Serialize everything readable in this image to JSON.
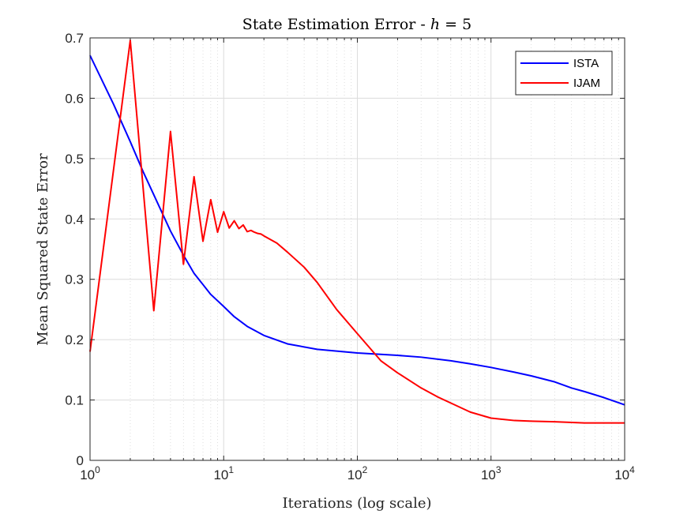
{
  "chart_data": {
    "type": "line",
    "title": "State Estimation Error - h = 5",
    "title_prefix": "State Estimation Error - ",
    "title_var": "h",
    "title_eq": " = 5",
    "xlabel": "Iterations (log scale)",
    "ylabel": "Mean Squared State Error",
    "xscale": "log",
    "xlim": [
      1,
      10000
    ],
    "ylim": [
      0,
      0.7
    ],
    "grid": true,
    "legend_position": "top-right",
    "xticks": [
      {
        "value": 1,
        "base": "10",
        "exp": "0"
      },
      {
        "value": 10,
        "base": "10",
        "exp": "1"
      },
      {
        "value": 100,
        "base": "10",
        "exp": "2"
      },
      {
        "value": 1000,
        "base": "10",
        "exp": "3"
      },
      {
        "value": 10000,
        "base": "10",
        "exp": "4"
      }
    ],
    "yticks": [
      {
        "value": 0,
        "label": "0"
      },
      {
        "value": 0.1,
        "label": "0.1"
      },
      {
        "value": 0.2,
        "label": "0.2"
      },
      {
        "value": 0.3,
        "label": "0.3"
      },
      {
        "value": 0.4,
        "label": "0.4"
      },
      {
        "value": 0.5,
        "label": "0.5"
      },
      {
        "value": 0.6,
        "label": "0.6"
      },
      {
        "value": 0.7,
        "label": "0.7"
      }
    ],
    "series": [
      {
        "name": "ISTA",
        "color": "#0000ff",
        "x": [
          1,
          1.5,
          2,
          2.5,
          3,
          4,
          5,
          6,
          8,
          10,
          12,
          15,
          20,
          30,
          50,
          70,
          100,
          200,
          300,
          500,
          700,
          1000,
          1500,
          2000,
          3000,
          4000,
          5000,
          7000,
          10000
        ],
        "y": [
          0.671,
          0.59,
          0.528,
          0.478,
          0.44,
          0.38,
          0.34,
          0.31,
          0.275,
          0.255,
          0.238,
          0.222,
          0.207,
          0.193,
          0.184,
          0.181,
          0.178,
          0.174,
          0.171,
          0.165,
          0.16,
          0.154,
          0.146,
          0.14,
          0.13,
          0.12,
          0.114,
          0.104,
          0.092
        ]
      },
      {
        "name": "IJAM",
        "color": "#ff0000",
        "x": [
          1,
          2,
          3,
          4,
          5,
          6,
          7,
          8,
          9,
          10,
          11,
          12,
          13,
          14,
          15,
          16,
          17,
          18,
          19,
          20,
          25,
          30,
          40,
          50,
          70,
          100,
          150,
          200,
          300,
          400,
          500,
          700,
          1000,
          1500,
          2000,
          3000,
          5000,
          10000
        ],
        "y": [
          0.18,
          0.696,
          0.248,
          0.545,
          0.325,
          0.47,
          0.363,
          0.432,
          0.378,
          0.412,
          0.385,
          0.397,
          0.384,
          0.39,
          0.379,
          0.381,
          0.378,
          0.376,
          0.375,
          0.372,
          0.36,
          0.345,
          0.32,
          0.295,
          0.25,
          0.21,
          0.165,
          0.145,
          0.12,
          0.105,
          0.095,
          0.08,
          0.07,
          0.066,
          0.065,
          0.064,
          0.062,
          0.062
        ]
      }
    ]
  }
}
